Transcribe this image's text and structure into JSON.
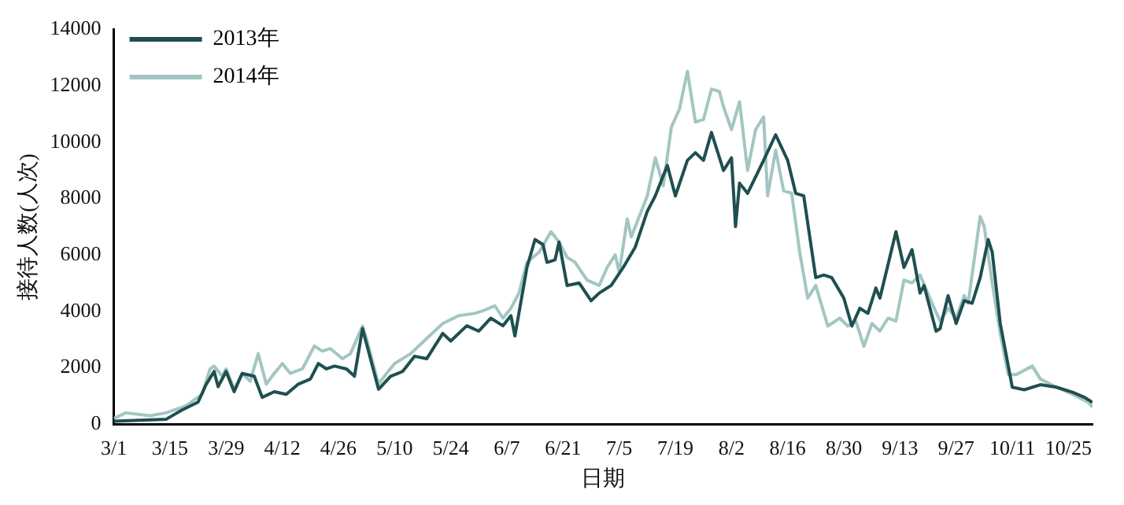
{
  "chart_data": {
    "type": "line",
    "xlabel": "日期",
    "ylabel": "接待人数(人次)",
    "legend": "top left",
    "grid": false,
    "marker": "none",
    "line_style": "solid",
    "xlim": [
      "--03-01",
      "--10-31"
    ],
    "xticks": [
      {
        "value": "--03-01",
        "label": "3/1"
      },
      {
        "value": "--03-15",
        "label": "3/15"
      },
      {
        "value": "--03-29",
        "label": "3/29"
      },
      {
        "value": "--04-12",
        "label": "4/12"
      },
      {
        "value": "--04-26",
        "label": "4/26"
      },
      {
        "value": "--05-10",
        "label": "5/10"
      },
      {
        "value": "--05-24",
        "label": "5/24"
      },
      {
        "value": "--06-07",
        "label": "6/7"
      },
      {
        "value": "--06-21",
        "label": "6/21"
      },
      {
        "value": "--07-05",
        "label": "7/5"
      },
      {
        "value": "--07-19",
        "label": "7/19"
      },
      {
        "value": "--08-02",
        "label": "8/2"
      },
      {
        "value": "--08-16",
        "label": "8/16"
      },
      {
        "value": "--08-30",
        "label": "8/30"
      },
      {
        "value": "--09-13",
        "label": "9/13"
      },
      {
        "value": "--09-27",
        "label": "9/27"
      },
      {
        "value": "--10-11",
        "label": "10/11"
      },
      {
        "value": "--10-25",
        "label": "10/25"
      }
    ],
    "ylim": [
      0,
      14000
    ],
    "yticks": [
      0,
      2000,
      4000,
      6000,
      8000,
      10000,
      12000,
      14000
    ],
    "series": [
      {
        "name": "2013年",
        "color": "#1f4f50",
        "x": [
          "--03-01",
          "--03-14",
          "--03-18",
          "--03-22",
          "--03-24",
          "--03-26",
          "--03-27",
          "--03-29",
          "--03-31",
          "--04-02",
          "--04-05",
          "--04-07",
          "--04-10",
          "--04-13",
          "--04-16",
          "--04-19",
          "--04-21",
          "--04-23",
          "--04-25",
          "--04-28",
          "--04-30",
          "--05-02",
          "--05-03",
          "--05-06",
          "--05-09",
          "--05-12",
          "--05-15",
          "--05-18",
          "--05-22",
          "--05-24",
          "--05-28",
          "--05-31",
          "--06-03",
          "--06-06",
          "--06-08",
          "--06-09",
          "--06-12",
          "--06-14",
          "--06-16",
          "--06-17",
          "--06-19",
          "--06-20",
          "--06-22",
          "--06-25",
          "--06-28",
          "--06-30",
          "--07-03",
          "--07-06",
          "--07-09",
          "--07-12",
          "--07-14",
          "--07-17",
          "--07-19",
          "--07-22",
          "--07-24",
          "--07-26",
          "--07-28",
          "--07-30",
          "--07-31",
          "--08-02",
          "--08-03",
          "--08-04",
          "--08-06",
          "--08-10",
          "--08-13",
          "--08-16",
          "--08-18",
          "--08-20",
          "--08-23",
          "--08-25",
          "--08-27",
          "--08-30",
          "--09-01",
          "--09-03",
          "--09-05",
          "--09-07",
          "--09-08",
          "--09-12",
          "--09-14",
          "--09-16",
          "--09-18",
          "--09-19",
          "--09-22",
          "--09-23",
          "--09-25",
          "--09-27",
          "--09-29",
          "--10-01",
          "--10-03",
          "--10-05",
          "--10-06",
          "--10-08",
          "--10-11",
          "--10-14",
          "--10-18",
          "--10-22",
          "--10-26",
          "--10-29",
          "--10-31"
        ],
        "values": [
          100,
          170,
          500,
          780,
          1400,
          1870,
          1330,
          1870,
          1150,
          1800,
          1700,
          950,
          1150,
          1060,
          1420,
          1600,
          2150,
          1960,
          2060,
          1960,
          1700,
          3390,
          2850,
          1240,
          1700,
          1870,
          2410,
          2320,
          3220,
          2950,
          3490,
          3300,
          3760,
          3490,
          3850,
          3130,
          5560,
          6550,
          6370,
          5740,
          5830,
          6460,
          4920,
          5010,
          4380,
          4650,
          4920,
          5560,
          6280,
          7550,
          8100,
          9180,
          8100,
          9360,
          9630,
          9360,
          10350,
          9450,
          9000,
          9450,
          7010,
          8550,
          8190,
          9360,
          10270,
          9360,
          8190,
          8100,
          5200,
          5290,
          5200,
          4470,
          3480,
          4110,
          3930,
          4830,
          4470,
          6830,
          5560,
          6190,
          4650,
          4920,
          3300,
          3390,
          4560,
          3570,
          4380,
          4290,
          5200,
          6550,
          6100,
          3570,
          1310,
          1220,
          1400,
          1310,
          1130,
          950,
          770
        ]
      },
      {
        "name": "2014年",
        "color": "#a3c6c2",
        "x": [
          "--03-01",
          "--03-04",
          "--03-10",
          "--03-14",
          "--03-19",
          "--03-23",
          "--03-25",
          "--03-26",
          "--03-28",
          "--03-29",
          "--03-31",
          "--04-02",
          "--04-04",
          "--04-06",
          "--04-08",
          "--04-10",
          "--04-12",
          "--04-14",
          "--04-17",
          "--04-20",
          "--04-22",
          "--04-24",
          "--04-27",
          "--04-29",
          "--05-02",
          "--05-03",
          "--05-06",
          "--05-08",
          "--05-10",
          "--05-14",
          "--05-16",
          "--05-22",
          "--05-26",
          "--05-30",
          "--06-01",
          "--06-04",
          "--06-06",
          "--06-08",
          "--06-10",
          "--06-12",
          "--06-15",
          "--06-18",
          "--06-20",
          "--06-22",
          "--06-24",
          "--06-27",
          "--06-30",
          "--07-02",
          "--07-04",
          "--07-05",
          "--07-07",
          "--07-08",
          "--07-12",
          "--07-14",
          "--07-16",
          "--07-18",
          "--07-20",
          "--07-22",
          "--07-24",
          "--07-26",
          "--07-28",
          "--07-30",
          "--07-31",
          "--08-02",
          "--08-04",
          "--08-06",
          "--08-08",
          "--08-10",
          "--08-11",
          "--08-13",
          "--08-15",
          "--08-17",
          "--08-19",
          "--08-21",
          "--08-23",
          "--08-26",
          "--08-29",
          "--08-31",
          "--09-02",
          "--09-04",
          "--09-06",
          "--09-08",
          "--09-10",
          "--09-12",
          "--09-14",
          "--09-16",
          "--09-18",
          "--09-21",
          "--09-23",
          "--09-25",
          "--09-27",
          "--09-29",
          "--09-30",
          "--10-03",
          "--10-04",
          "--10-06",
          "--10-08",
          "--10-10",
          "--10-12",
          "--10-16",
          "--10-18",
          "--10-22",
          "--10-26",
          "--10-30",
          "--10-31"
        ],
        "values": [
          200,
          400,
          300,
          400,
          650,
          1060,
          1960,
          2060,
          1700,
          1960,
          1240,
          1800,
          1520,
          2500,
          1420,
          1800,
          2150,
          1800,
          1960,
          2770,
          2590,
          2680,
          2320,
          2500,
          3480,
          3030,
          1420,
          1800,
          2150,
          2500,
          2770,
          3570,
          3850,
          3930,
          4020,
          4200,
          3760,
          4110,
          4650,
          5740,
          6100,
          6830,
          6460,
          5920,
          5740,
          5110,
          4920,
          5560,
          6010,
          5380,
          7280,
          6640,
          8100,
          9450,
          8460,
          10540,
          11170,
          12520,
          10720,
          10810,
          11890,
          11800,
          11260,
          10450,
          11440,
          9000,
          10450,
          10900,
          8100,
          9720,
          8280,
          8190,
          6100,
          4470,
          4920,
          3480,
          3760,
          3480,
          3660,
          2760,
          3570,
          3300,
          3760,
          3660,
          5110,
          5010,
          5290,
          4290,
          3660,
          4110,
          3760,
          4560,
          4290,
          7370,
          7010,
          5010,
          3210,
          1760,
          1760,
          2060,
          1600,
          1310,
          1060,
          770,
          600
        ]
      }
    ]
  }
}
